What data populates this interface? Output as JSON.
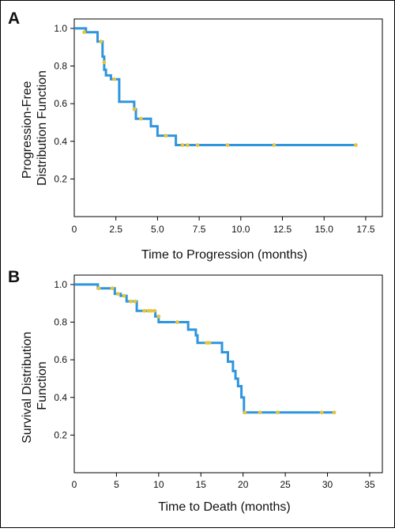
{
  "colors": {
    "curve": "#2f95dd",
    "censor": "#e8c43a",
    "frame": "#000000"
  },
  "chart_data": [
    {
      "type": "line",
      "step": true,
      "panel": "A",
      "xlabel": "Time to Progression (months)",
      "ylabel": "Progression-Free Distribution Function",
      "ylabel_lines": [
        "Progression-Free",
        "Distribution Function"
      ],
      "xlim": [
        0,
        18.5
      ],
      "ylim": [
        0,
        1.05
      ],
      "x_ticks": [
        0,
        2.5,
        5.0,
        7.5,
        10.0,
        12.5,
        15.0,
        17.5
      ],
      "x_tick_labels": [
        "0",
        "2.5",
        "5.0",
        "7.5",
        "10.0",
        "12.5",
        "15.0",
        "17.5"
      ],
      "y_ticks": [
        0.2,
        0.4,
        0.6,
        0.8,
        1.0
      ],
      "y_tick_labels": [
        "0.2",
        "0.4",
        "0.6",
        "0.8",
        "1.0"
      ],
      "grid": false,
      "steps": [
        [
          0,
          1.0
        ],
        [
          0.7,
          0.98
        ],
        [
          1.4,
          0.93
        ],
        [
          1.7,
          0.85
        ],
        [
          1.8,
          0.78
        ],
        [
          1.9,
          0.75
        ],
        [
          2.2,
          0.73
        ],
        [
          2.7,
          0.61
        ],
        [
          3.6,
          0.57
        ],
        [
          3.7,
          0.52
        ],
        [
          4.6,
          0.48
        ],
        [
          5.0,
          0.43
        ],
        [
          6.1,
          0.38
        ],
        [
          17.0,
          0.38
        ]
      ],
      "censored": [
        [
          0.6,
          0.98
        ],
        [
          1.6,
          0.93
        ],
        [
          1.8,
          0.82
        ],
        [
          2.4,
          0.73
        ],
        [
          3.6,
          0.57
        ],
        [
          4.0,
          0.52
        ],
        [
          5.5,
          0.43
        ],
        [
          6.5,
          0.38
        ],
        [
          6.8,
          0.38
        ],
        [
          7.4,
          0.38
        ],
        [
          9.2,
          0.38
        ],
        [
          12.0,
          0.38
        ],
        [
          16.9,
          0.38
        ]
      ]
    },
    {
      "type": "line",
      "step": true,
      "panel": "B",
      "xlabel": "Time to Death (months)",
      "ylabel": "Survival Distribution Function",
      "ylabel_lines": [
        "Survival Distribution",
        "Function"
      ],
      "xlim": [
        0,
        36.5
      ],
      "ylim": [
        0,
        1.05
      ],
      "x_ticks": [
        0,
        5,
        10,
        15,
        20,
        25,
        30,
        35
      ],
      "x_tick_labels": [
        "0",
        "5",
        "10",
        "15",
        "20",
        "25",
        "30",
        "35"
      ],
      "y_ticks": [
        0.2,
        0.4,
        0.6,
        0.8,
        1.0
      ],
      "y_tick_labels": [
        "0.2",
        "0.4",
        "0.6",
        "0.8",
        "1.0"
      ],
      "grid": false,
      "steps": [
        [
          0,
          1.0
        ],
        [
          2.8,
          0.98
        ],
        [
          4.8,
          0.95
        ],
        [
          5.5,
          0.94
        ],
        [
          6.2,
          0.91
        ],
        [
          7.4,
          0.86
        ],
        [
          9.6,
          0.83
        ],
        [
          10.0,
          0.8
        ],
        [
          12.8,
          0.8
        ],
        [
          13.5,
          0.76
        ],
        [
          14.4,
          0.73
        ],
        [
          14.6,
          0.69
        ],
        [
          17.5,
          0.64
        ],
        [
          18.2,
          0.59
        ],
        [
          18.8,
          0.54
        ],
        [
          19.1,
          0.5
        ],
        [
          19.4,
          0.46
        ],
        [
          19.8,
          0.4
        ],
        [
          20.1,
          0.32
        ],
        [
          30.9,
          0.32
        ]
      ],
      "censored": [
        [
          2.9,
          0.98
        ],
        [
          4.5,
          0.98
        ],
        [
          5.2,
          0.95
        ],
        [
          5.9,
          0.94
        ],
        [
          6.7,
          0.91
        ],
        [
          7.2,
          0.91
        ],
        [
          8.3,
          0.86
        ],
        [
          8.8,
          0.86
        ],
        [
          9.1,
          0.86
        ],
        [
          9.5,
          0.86
        ],
        [
          10.0,
          0.83
        ],
        [
          12.2,
          0.8
        ],
        [
          15.7,
          0.69
        ],
        [
          16.0,
          0.69
        ],
        [
          20.2,
          0.32
        ],
        [
          22.0,
          0.32
        ],
        [
          24.1,
          0.32
        ],
        [
          29.3,
          0.32
        ],
        [
          30.8,
          0.32
        ]
      ]
    }
  ]
}
